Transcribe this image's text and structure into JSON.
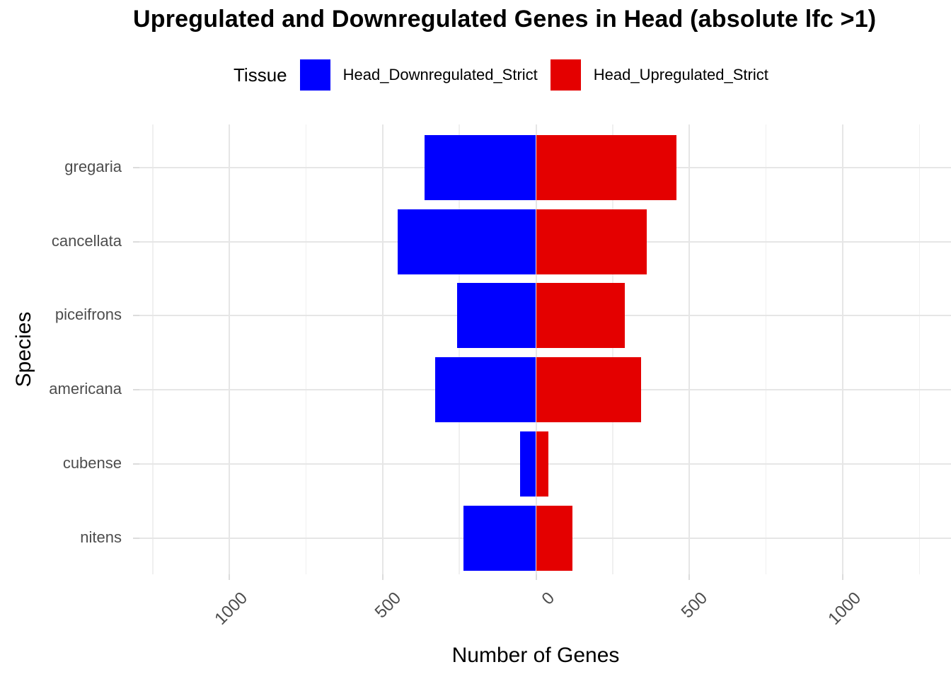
{
  "title": "Upregulated and Downregulated Genes in Head (absolute lfc >1)",
  "legend": {
    "title": "Tissue",
    "items": [
      {
        "label": "Head_Downregulated_Strict",
        "color": "#0000ff"
      },
      {
        "label": "Head_Upregulated_Strict",
        "color": "#e40000"
      }
    ],
    "position": "top"
  },
  "axes": {
    "x_title": "Number of Genes",
    "y_title": "Species"
  },
  "chart_data": {
    "type": "bar",
    "orientation": "horizontal-diverging",
    "title": "Upregulated and Downregulated Genes in Head (absolute lfc >1)",
    "xlabel": "Number of Genes",
    "ylabel": "Species",
    "categories": [
      "gregaria",
      "cancellata",
      "piceifrons",
      "americana",
      "cubense",
      "nitens"
    ],
    "series": [
      {
        "name": "Head_Downregulated_Strict",
        "color": "#0000ff",
        "direction": "negative",
        "values": [
          364,
          451,
          257,
          329,
          52,
          237
        ]
      },
      {
        "name": "Head_Upregulated_Strict",
        "color": "#e40000",
        "direction": "positive",
        "values": [
          458,
          361,
          290,
          343,
          40,
          119
        ]
      }
    ],
    "x_axis": {
      "tick_values": [
        -1000,
        -500,
        0,
        500,
        1000
      ],
      "tick_labels": [
        "1000",
        "500",
        "0",
        "500",
        "1000"
      ],
      "minor_tick_values": [
        -1250,
        -750,
        -250,
        250,
        750,
        1250
      ],
      "range": [
        -1293,
        1353
      ]
    },
    "grid": "on",
    "legend_position": "top",
    "bar_colors": {
      "downregulated": "#0000ff",
      "upregulated": "#e40000"
    }
  }
}
